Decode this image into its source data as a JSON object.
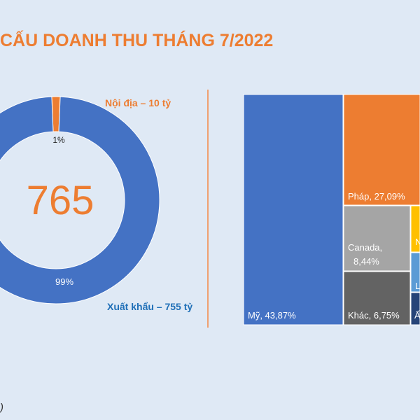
{
  "title": "CẤU DOANH THU THÁNG 7/2022",
  "footnote": ")",
  "donut": {
    "center_value": "765",
    "slices": [
      {
        "name": "Nội địa – 10 tỷ",
        "value": 10,
        "label": "1%",
        "color": "#ed7d31"
      },
      {
        "name": "Xuất khẩu – 755 tỷ",
        "value": 755,
        "label": "99%",
        "color": "#4472c4"
      }
    ]
  },
  "chart_data": [
    {
      "type": "pie",
      "categories": [
        "Nội địa",
        "Xuất khẩu"
      ],
      "values": [
        10,
        755
      ],
      "labels": [
        "Nội địa – 10 tỷ",
        "Xuất khẩu – 755 tỷ"
      ],
      "percent_labels": [
        "1%",
        "99%"
      ],
      "center_text": "765"
    },
    {
      "type": "treemap",
      "items": [
        {
          "name": "Mỹ",
          "value": 43.87,
          "label": "Mỹ, 43,87%",
          "color": "#4472c4"
        },
        {
          "name": "Pháp",
          "value": 27.09,
          "label": "Pháp, 27,09%",
          "color": "#ed7d31"
        },
        {
          "name": "Canada",
          "value": 8.44,
          "label": "Canada, 8,44%",
          "color": "#a5a5a5"
        },
        {
          "name": "Khác",
          "value": 6.75,
          "label": "Khác, 6,75%",
          "color": "#636363"
        },
        {
          "name": "N",
          "value": null,
          "label": "N",
          "color": "#ffc000"
        },
        {
          "name": "L",
          "value": null,
          "label": "L",
          "color": "#5b9bd5"
        },
        {
          "name": "Ấ",
          "value": null,
          "label": "Ấ",
          "color": "#264478"
        }
      ]
    }
  ]
}
